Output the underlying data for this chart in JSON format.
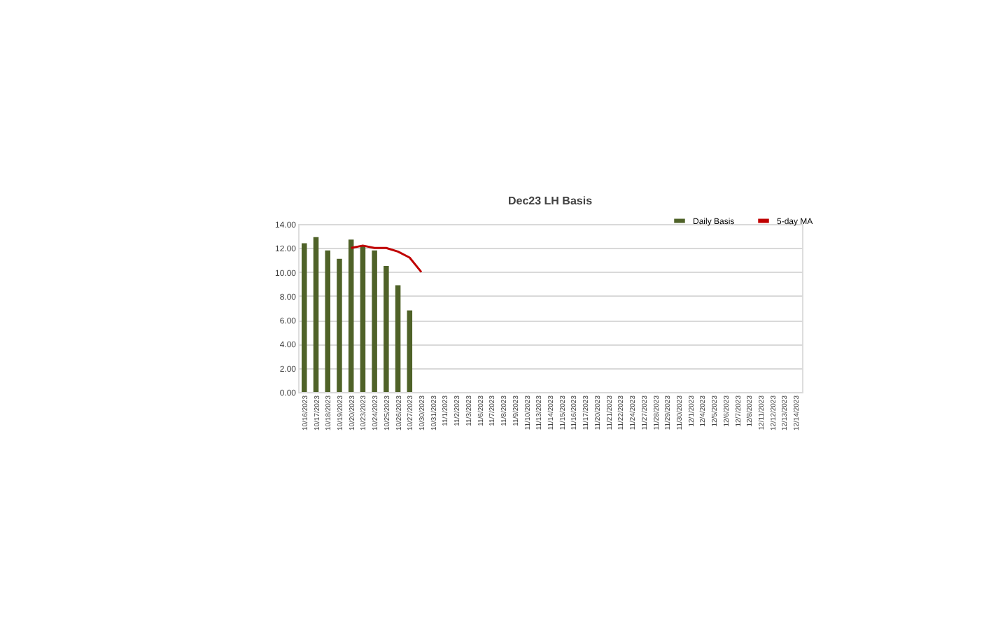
{
  "chart_data": {
    "type": "bar",
    "title": "Dec23 LH Basis",
    "categories": [
      "10/16/2023",
      "10/17/2023",
      "10/18/2023",
      "10/19/2023",
      "10/20/2023",
      "10/23/2023",
      "10/24/2023",
      "10/25/2023",
      "10/26/2023",
      "10/27/2023",
      "10/30/2023",
      "10/31/2023",
      "11/1/2023",
      "11/2/2023",
      "11/3/2023",
      "11/6/2023",
      "11/7/2023",
      "11/8/2023",
      "11/9/2023",
      "11/10/2023",
      "11/13/2023",
      "11/14/2023",
      "11/15/2023",
      "11/16/2023",
      "11/17/2023",
      "11/20/2023",
      "11/21/2023",
      "11/22/2023",
      "11/24/2023",
      "11/27/2023",
      "11/28/2023",
      "11/29/2023",
      "11/30/2023",
      "12/1/2023",
      "12/4/2023",
      "12/5/2023",
      "12/6/2023",
      "12/7/2023",
      "12/8/2023",
      "12/11/2023",
      "12/12/2023",
      "12/13/2023",
      "12/14/2023"
    ],
    "series": [
      {
        "name": "Daily Basis",
        "color": "#4f6228",
        "values": [
          12.4,
          12.9,
          11.8,
          11.1,
          12.7,
          12.2,
          11.8,
          10.5,
          8.9,
          6.8,
          null,
          null,
          null,
          null,
          null,
          null,
          null,
          null,
          null,
          null,
          null,
          null,
          null,
          null,
          null,
          null,
          null,
          null,
          null,
          null,
          null,
          null,
          null,
          null,
          null,
          null,
          null,
          null,
          null,
          null,
          null,
          null,
          null
        ]
      },
      {
        "name": "5-day MA",
        "type": "line",
        "color": "#c00000",
        "values": [
          null,
          null,
          null,
          null,
          12.0,
          12.2,
          12.0,
          12.0,
          11.7,
          11.2,
          10.0,
          null,
          null,
          null,
          null,
          null,
          null,
          null,
          null,
          null,
          null,
          null,
          null,
          null,
          null,
          null,
          null,
          null,
          null,
          null,
          null,
          null,
          null,
          null,
          null,
          null,
          null,
          null,
          null,
          null,
          null,
          null,
          null
        ]
      }
    ],
    "ylim": [
      0,
      14
    ],
    "yticks": [
      {
        "value": 0,
        "label": "0.00"
      },
      {
        "value": 2,
        "label": "2.00"
      },
      {
        "value": 4,
        "label": "4.00"
      },
      {
        "value": 6,
        "label": "6.00"
      },
      {
        "value": 8,
        "label": "8.00"
      },
      {
        "value": 10,
        "label": "10.00"
      },
      {
        "value": 12,
        "label": "12.00"
      },
      {
        "value": 14,
        "label": "14.00"
      }
    ],
    "grid": "y",
    "legend": "top right",
    "marker": "none",
    "line_style": "solid"
  }
}
